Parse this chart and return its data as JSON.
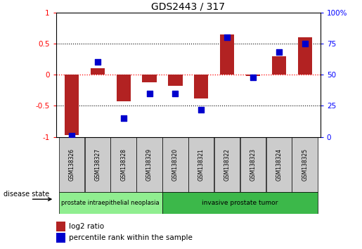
{
  "title": "GDS2443 / 317",
  "samples": [
    "GSM138326",
    "GSM138327",
    "GSM138328",
    "GSM138329",
    "GSM138320",
    "GSM138321",
    "GSM138322",
    "GSM138323",
    "GSM138324",
    "GSM138325"
  ],
  "log2_ratio": [
    -0.97,
    0.1,
    -0.43,
    -0.12,
    -0.18,
    -0.38,
    0.65,
    -0.02,
    0.3,
    0.6
  ],
  "percentile_rank": [
    1,
    60,
    15,
    35,
    35,
    22,
    80,
    48,
    68,
    75
  ],
  "bar_color": "#b22222",
  "dot_color": "#0000cd",
  "ylim_left": [
    -1,
    1
  ],
  "ylim_right": [
    0,
    100
  ],
  "yticks_left": [
    -1,
    -0.5,
    0,
    0.5,
    1
  ],
  "yticks_right": [
    0,
    25,
    50,
    75,
    100
  ],
  "ytick_labels_left": [
    "-1",
    "-0.5",
    "0",
    "0.5",
    "1"
  ],
  "ytick_labels_right": [
    "0",
    "25",
    "50",
    "75",
    "100%"
  ],
  "group1_label": "prostate intraepithelial neoplasia",
  "group2_label": "invasive prostate tumor",
  "group1_n": 4,
  "group2_n": 6,
  "disease_state_label": "disease state",
  "legend_log2": "log2 ratio",
  "legend_pct": "percentile rank within the sample",
  "group1_color": "#90ee90",
  "group2_color": "#3cb84a",
  "sample_box_color": "#cccccc",
  "bar_width": 0.55,
  "dot_size": 36
}
